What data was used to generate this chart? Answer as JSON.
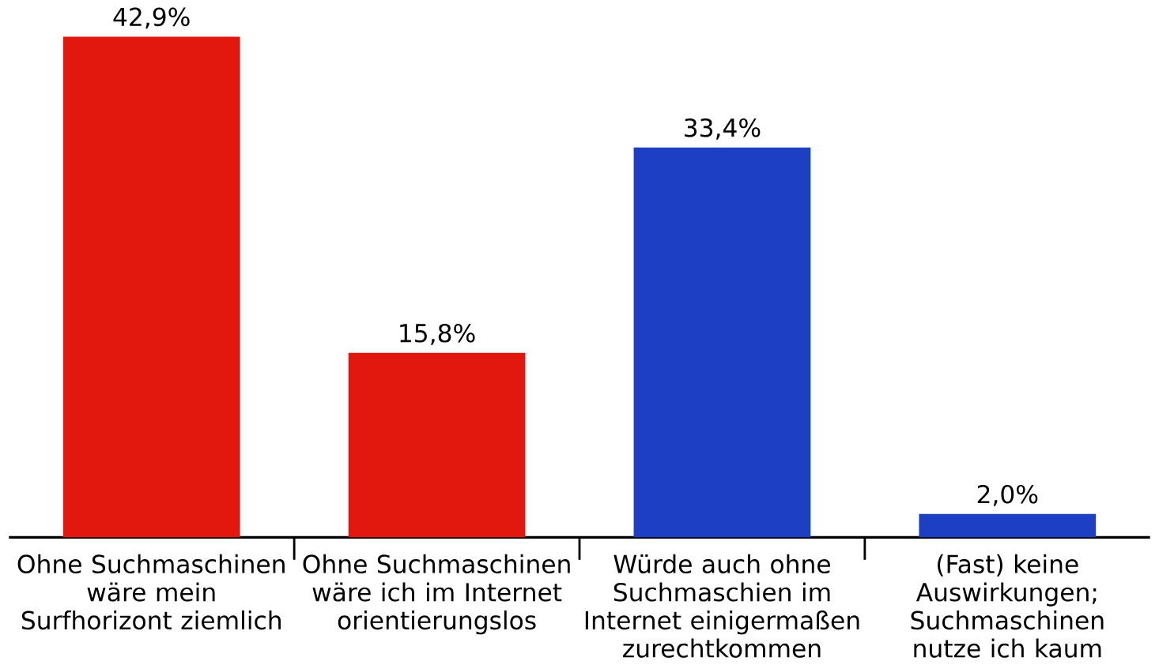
{
  "chart_data": {
    "type": "bar",
    "categories": [
      "Ohne Suchmaschinen wäre mein Surfhorizont ziemlich",
      "Ohne Suchmaschinen wäre ich im Internet orientierungslos",
      "Würde auch ohne Suchmaschien im Internet einigermaßen zurechtkommen",
      "(Fast) keine Auswirkungen; Suchmaschinen nutze ich kaum"
    ],
    "values": [
      42.9,
      15.8,
      33.4,
      2.0
    ],
    "value_labels": [
      "42,9%",
      "15,8%",
      "33,4%",
      "2,0%"
    ],
    "colors": [
      "#e2180f",
      "#e2180f",
      "#1c3fc4",
      "#1c3fc4"
    ]
  }
}
